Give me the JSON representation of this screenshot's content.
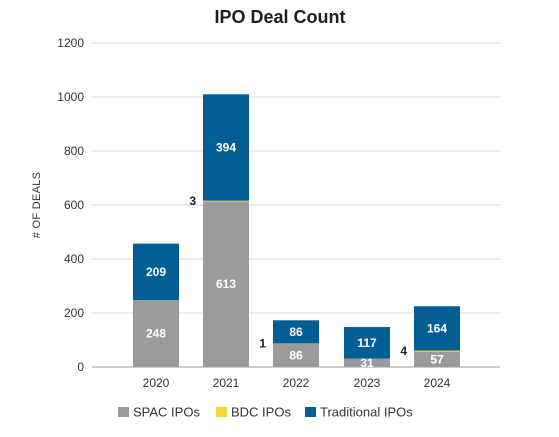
{
  "chart_data": {
    "type": "bar",
    "stacked": true,
    "title": "IPO Deal Count",
    "xlabel": "",
    "ylabel": "# OF DEALS",
    "ylim": [
      0,
      1200
    ],
    "yticks": [
      0,
      200,
      400,
      600,
      800,
      1000,
      1200
    ],
    "grid": true,
    "legend_position": "bottom",
    "categories": [
      "2020",
      "2021",
      "2022",
      "2023",
      "2024"
    ],
    "series": [
      {
        "name": "SPAC IPOs",
        "color": "#9b9b9b",
        "values": [
          248,
          613,
          86,
          31,
          57
        ]
      },
      {
        "name": "BDC IPOs",
        "color": "#f2d43c",
        "values": [
          0,
          3,
          1,
          0,
          4
        ]
      },
      {
        "name": "Traditional IPOs",
        "color": "#035f93",
        "values": [
          209,
          394,
          86,
          117,
          164
        ]
      }
    ]
  }
}
